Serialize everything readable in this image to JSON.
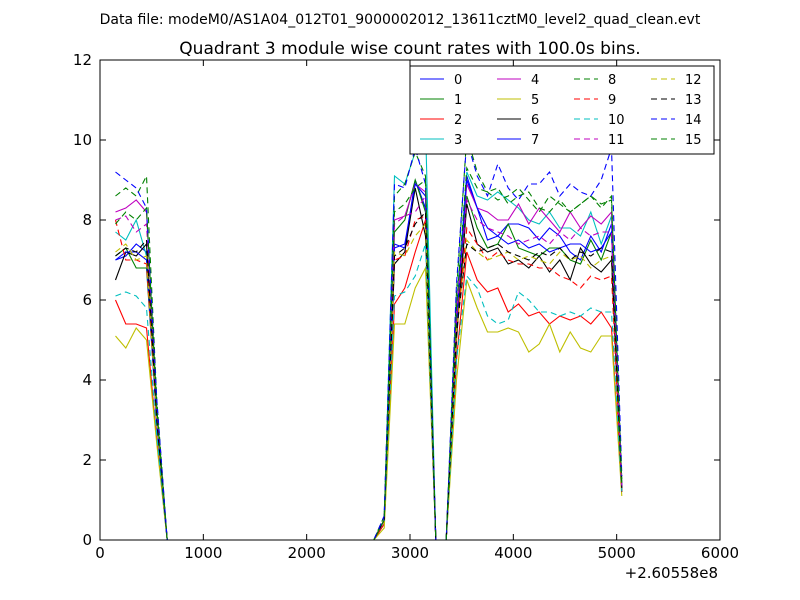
{
  "header": {
    "data_file": "Data file: modeM0/AS1A04_012T01_9000002012_13611cztM0_level2_quad_clean.evt"
  },
  "chart_data": {
    "type": "line",
    "title": "Quadrant 3 module wise count rates with 100.0s bins.",
    "xlabel": "",
    "ylabel": "",
    "x_offset_label": "+2.60558e8",
    "xlim": [
      0,
      6000
    ],
    "ylim": [
      0,
      12
    ],
    "xticks": [
      0,
      1000,
      2000,
      3000,
      4000,
      5000,
      6000
    ],
    "yticks": [
      0,
      2,
      4,
      6,
      8,
      10,
      12
    ],
    "grid": false,
    "legend": {
      "placement": "top-right",
      "columns": 4
    },
    "x": [
      150,
      250,
      350,
      450,
      550,
      650,
      750,
      850,
      950,
      1050,
      1150,
      1250,
      1350,
      1450,
      1550,
      1650,
      1750,
      1850,
      1950,
      2050,
      2150,
      2250,
      2350,
      2450,
      2550,
      2650,
      2750,
      2850,
      2950,
      3050,
      3150,
      3250,
      3350,
      3450,
      3550,
      3650,
      3750,
      3850,
      3950,
      4050,
      4150,
      4250,
      4350,
      4450,
      4550,
      4650,
      4750,
      4850,
      4950,
      5050
    ],
    "series": [
      {
        "name": "0",
        "color": "#0000ff",
        "dash": "solid",
        "values": [
          7.0,
          7.1,
          7.4,
          7.2,
          3.0,
          0,
          0,
          0,
          0,
          0,
          0,
          0,
          0,
          0,
          0,
          0,
          0,
          0,
          0,
          0,
          0,
          0,
          0,
          0,
          0,
          0,
          0.5,
          7.4,
          7.3,
          9.0,
          8.3,
          0,
          0,
          5.5,
          9.0,
          8.3,
          7.5,
          7.6,
          7.9,
          7.9,
          7.8,
          7.5,
          7.8,
          7.6,
          7.2,
          7.0,
          7.6,
          7.2,
          7.9,
          1.3
        ]
      },
      {
        "name": "1",
        "color": "#008000",
        "dash": "solid",
        "values": [
          7.1,
          7.3,
          6.8,
          6.8,
          3.0,
          0,
          0,
          0,
          0,
          0,
          0,
          0,
          0,
          0,
          0,
          0,
          0,
          0,
          0,
          0,
          0,
          0,
          0,
          0,
          0,
          0,
          0.4,
          7.7,
          8.0,
          9.0,
          8.2,
          0,
          0,
          5.3,
          8.6,
          7.8,
          7.3,
          7.4,
          7.9,
          7.3,
          7.2,
          7.1,
          7.3,
          7.3,
          7.0,
          6.9,
          7.5,
          7.0,
          7.7,
          1.3
        ]
      },
      {
        "name": "2",
        "color": "#ff0000",
        "dash": "solid",
        "values": [
          6.0,
          5.4,
          5.4,
          5.3,
          2.5,
          0,
          0,
          0,
          0,
          0,
          0,
          0,
          0,
          0,
          0,
          0,
          0,
          0,
          0,
          0,
          0,
          0,
          0,
          0,
          0,
          0,
          0.4,
          5.9,
          6.3,
          7.2,
          8.0,
          0,
          0,
          4.5,
          7.2,
          6.5,
          6.2,
          6.3,
          5.7,
          5.9,
          5.6,
          5.7,
          5.4,
          5.6,
          5.5,
          5.6,
          5.4,
          5.7,
          5.3,
          1.2
        ]
      },
      {
        "name": "3",
        "color": "#00bfbf",
        "dash": "solid",
        "values": [
          7.7,
          7.5,
          8.0,
          7.1,
          3.1,
          0,
          0,
          0,
          0,
          0,
          0,
          0,
          0,
          0,
          0,
          0,
          0,
          0,
          0,
          0,
          0,
          0,
          0,
          0,
          0,
          0,
          0.5,
          9.1,
          8.9,
          9.7,
          10.4,
          0,
          0,
          5.8,
          9.2,
          8.6,
          8.5,
          8.7,
          8.5,
          8.3,
          8.0,
          7.9,
          8.2,
          7.8,
          7.8,
          7.6,
          8.2,
          7.4,
          8.1,
          1.2
        ]
      },
      {
        "name": "4",
        "color": "#bf00bf",
        "dash": "solid",
        "values": [
          8.2,
          8.3,
          8.5,
          8.2,
          3.3,
          0,
          0,
          0,
          0,
          0,
          0,
          0,
          0,
          0,
          0,
          0,
          0,
          0,
          0,
          0,
          0,
          0,
          0,
          0,
          0,
          0,
          0.5,
          8.0,
          8.1,
          8.9,
          8.7,
          0,
          0,
          5.7,
          8.9,
          8.3,
          8.2,
          8.0,
          8.0,
          8.4,
          7.9,
          8.3,
          8.0,
          7.7,
          8.2,
          7.8,
          8.1,
          7.9,
          8.2,
          1.4
        ]
      },
      {
        "name": "5",
        "color": "#bfbf00",
        "dash": "solid",
        "values": [
          5.1,
          4.8,
          5.3,
          5.0,
          2.4,
          0,
          0,
          0,
          0,
          0,
          0,
          0,
          0,
          0,
          0,
          0,
          0,
          0,
          0,
          0,
          0,
          0,
          0,
          0,
          0,
          0,
          0.3,
          5.4,
          5.4,
          6.3,
          6.8,
          0,
          0,
          4.0,
          6.5,
          5.8,
          5.2,
          5.2,
          5.3,
          5.2,
          4.7,
          4.9,
          5.4,
          4.7,
          5.2,
          4.8,
          4.7,
          5.1,
          5.1,
          1.1
        ]
      },
      {
        "name": "6",
        "color": "#000000",
        "dash": "solid",
        "values": [
          6.5,
          7.2,
          7.1,
          7.4,
          2.9,
          0,
          0,
          0,
          0,
          0,
          0,
          0,
          0,
          0,
          0,
          0,
          0,
          0,
          0,
          0,
          0,
          0,
          0,
          0,
          0,
          0,
          0.5,
          6.9,
          7.2,
          8.8,
          7.6,
          0,
          0,
          5.0,
          8.4,
          7.4,
          7.2,
          7.3,
          6.9,
          7.0,
          6.8,
          7.1,
          6.7,
          7.0,
          6.5,
          7.3,
          6.9,
          6.7,
          7.0,
          1.2
        ]
      },
      {
        "name": "7",
        "color": "#0000ff",
        "dash": "solid",
        "values": [
          7.0,
          7.2,
          7.2,
          7.0,
          2.9,
          0,
          0,
          0,
          0,
          0,
          0,
          0,
          0,
          0,
          0,
          0,
          0,
          0,
          0,
          0,
          0,
          0,
          0,
          0,
          0,
          0,
          0.5,
          7.3,
          7.4,
          8.9,
          8.6,
          0,
          0,
          5.4,
          9.1,
          8.3,
          7.8,
          7.6,
          7.4,
          7.5,
          7.3,
          7.4,
          7.2,
          7.3,
          7.4,
          7.4,
          7.2,
          7.3,
          7.7,
          1.3
        ]
      },
      {
        "name": "8",
        "color": "#008000",
        "dash": "dashed",
        "values": [
          8.6,
          8.8,
          8.6,
          9.1,
          3.5,
          0,
          0,
          0,
          0,
          0,
          0,
          0,
          0,
          0,
          0,
          0,
          0,
          0,
          0,
          0,
          0,
          0,
          0,
          0,
          0,
          0,
          0.6,
          8.6,
          8.9,
          9.7,
          9.1,
          0,
          0,
          6.2,
          10.1,
          9.2,
          8.7,
          8.5,
          8.6,
          8.8,
          8.5,
          8.2,
          8.6,
          8.4,
          8.2,
          8.4,
          8.6,
          8.3,
          8.6,
          1.5
        ]
      },
      {
        "name": "9",
        "color": "#ff0000",
        "dash": "dashed",
        "values": [
          8.0,
          7.0,
          7.0,
          6.9,
          3.0,
          0,
          0,
          0,
          0,
          0,
          0,
          0,
          0,
          0,
          0,
          0,
          0,
          0,
          0,
          0,
          0,
          0,
          0,
          0,
          0,
          0,
          0.5,
          7.0,
          7.1,
          8.0,
          8.1,
          0,
          0,
          5.2,
          7.8,
          7.4,
          7.0,
          7.2,
          7.0,
          6.9,
          6.9,
          6.8,
          6.8,
          6.6,
          6.5,
          6.3,
          6.6,
          6.5,
          6.6,
          1.2
        ]
      },
      {
        "name": "10",
        "color": "#00bfbf",
        "dash": "dashed",
        "values": [
          6.1,
          6.2,
          6.1,
          5.8,
          2.6,
          0,
          0,
          0,
          0,
          0,
          0,
          0,
          0,
          0,
          0,
          0,
          0,
          0,
          0,
          0,
          0,
          0,
          0,
          0,
          0,
          0,
          0.5,
          6.1,
          6.2,
          6.6,
          7.4,
          0,
          0,
          4.5,
          6.6,
          6.3,
          5.6,
          5.4,
          5.5,
          6.2,
          6.0,
          5.7,
          5.7,
          5.6,
          5.7,
          5.6,
          5.8,
          5.7,
          5.7,
          1.2
        ]
      },
      {
        "name": "11",
        "color": "#bf00bf",
        "dash": "dashed",
        "values": [
          8.0,
          8.1,
          7.7,
          7.9,
          3.2,
          0,
          0,
          0,
          0,
          0,
          0,
          0,
          0,
          0,
          0,
          0,
          0,
          0,
          0,
          0,
          0,
          0,
          0,
          0,
          0,
          0,
          0.5,
          7.9,
          8.1,
          8.2,
          8.6,
          0,
          0,
          5.6,
          8.5,
          8.0,
          7.8,
          7.7,
          7.6,
          7.4,
          7.5,
          7.6,
          7.4,
          7.7,
          7.5,
          7.8,
          7.6,
          7.7,
          7.7,
          1.3
        ]
      },
      {
        "name": "12",
        "color": "#bfbf00",
        "dash": "dashed",
        "values": [
          7.2,
          7.4,
          7.0,
          7.1,
          3.0,
          0,
          0,
          0,
          0,
          0,
          0,
          0,
          0,
          0,
          0,
          0,
          0,
          0,
          0,
          0,
          0,
          0,
          0,
          0,
          0,
          0,
          0.5,
          7.2,
          7.1,
          7.6,
          7.9,
          0,
          0,
          5.2,
          7.5,
          7.2,
          7.0,
          7.1,
          7.2,
          7.0,
          7.1,
          7.0,
          6.9,
          7.2,
          7.0,
          7.1,
          6.8,
          7.0,
          7.1,
          1.3
        ]
      },
      {
        "name": "13",
        "color": "#000000",
        "dash": "dashed",
        "values": [
          7.1,
          7.3,
          7.2,
          7.5,
          3.0,
          0,
          0,
          0,
          0,
          0,
          0,
          0,
          0,
          0,
          0,
          0,
          0,
          0,
          0,
          0,
          0,
          0,
          0,
          0,
          0,
          0,
          0.5,
          7.1,
          7.3,
          7.9,
          8.2,
          0,
          0,
          5.2,
          7.4,
          7.2,
          7.3,
          7.4,
          7.2,
          7.1,
          7.0,
          7.2,
          7.1,
          7.3,
          7.0,
          7.2,
          7.1,
          7.3,
          7.2,
          1.3
        ]
      },
      {
        "name": "14",
        "color": "#0000ff",
        "dash": "dashed",
        "values": [
          9.2,
          9.0,
          8.8,
          8.3,
          3.5,
          0,
          0,
          0,
          0,
          0,
          0,
          0,
          0,
          0,
          0,
          0,
          0,
          0,
          0,
          0,
          0,
          0,
          0,
          0,
          0,
          0,
          0.6,
          8.9,
          8.8,
          9.8,
          8.9,
          0,
          0,
          6.4,
          10.0,
          9.1,
          8.6,
          9.4,
          8.8,
          8.5,
          8.9,
          8.9,
          9.2,
          8.6,
          8.9,
          8.7,
          8.6,
          9.0,
          9.8,
          1.6
        ]
      },
      {
        "name": "15",
        "color": "#008000",
        "dash": "dashed",
        "values": [
          7.9,
          8.2,
          8.0,
          8.3,
          3.3,
          0,
          0,
          0,
          0,
          0,
          0,
          0,
          0,
          0,
          0,
          0,
          0,
          0,
          0,
          0,
          0,
          0,
          0,
          0,
          0,
          0,
          0.5,
          8.2,
          8.4,
          8.8,
          9.0,
          0,
          0,
          5.8,
          9.3,
          8.8,
          8.7,
          8.8,
          8.4,
          8.6,
          8.7,
          8.3,
          8.2,
          8.5,
          8.2,
          8.4,
          8.6,
          8.4,
          8.5,
          1.4
        ]
      }
    ]
  }
}
